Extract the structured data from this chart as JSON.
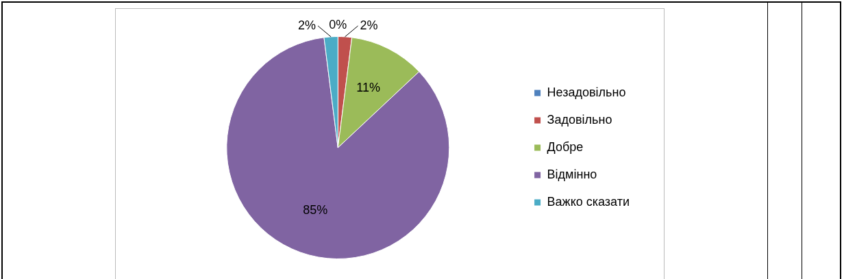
{
  "chart_data": {
    "type": "pie",
    "categories": [
      "Незадовільно",
      "Задовільно",
      "Добре",
      "Відмінно",
      "Важко сказати"
    ],
    "values": [
      0,
      2,
      11,
      85,
      2
    ],
    "value_labels": [
      "0%",
      "2%",
      "11%",
      "85%",
      "2%"
    ],
    "colors": [
      "#4f81bd",
      "#c0504d",
      "#9bbb59",
      "#8064a2",
      "#4bacc6"
    ],
    "legend": "right"
  }
}
